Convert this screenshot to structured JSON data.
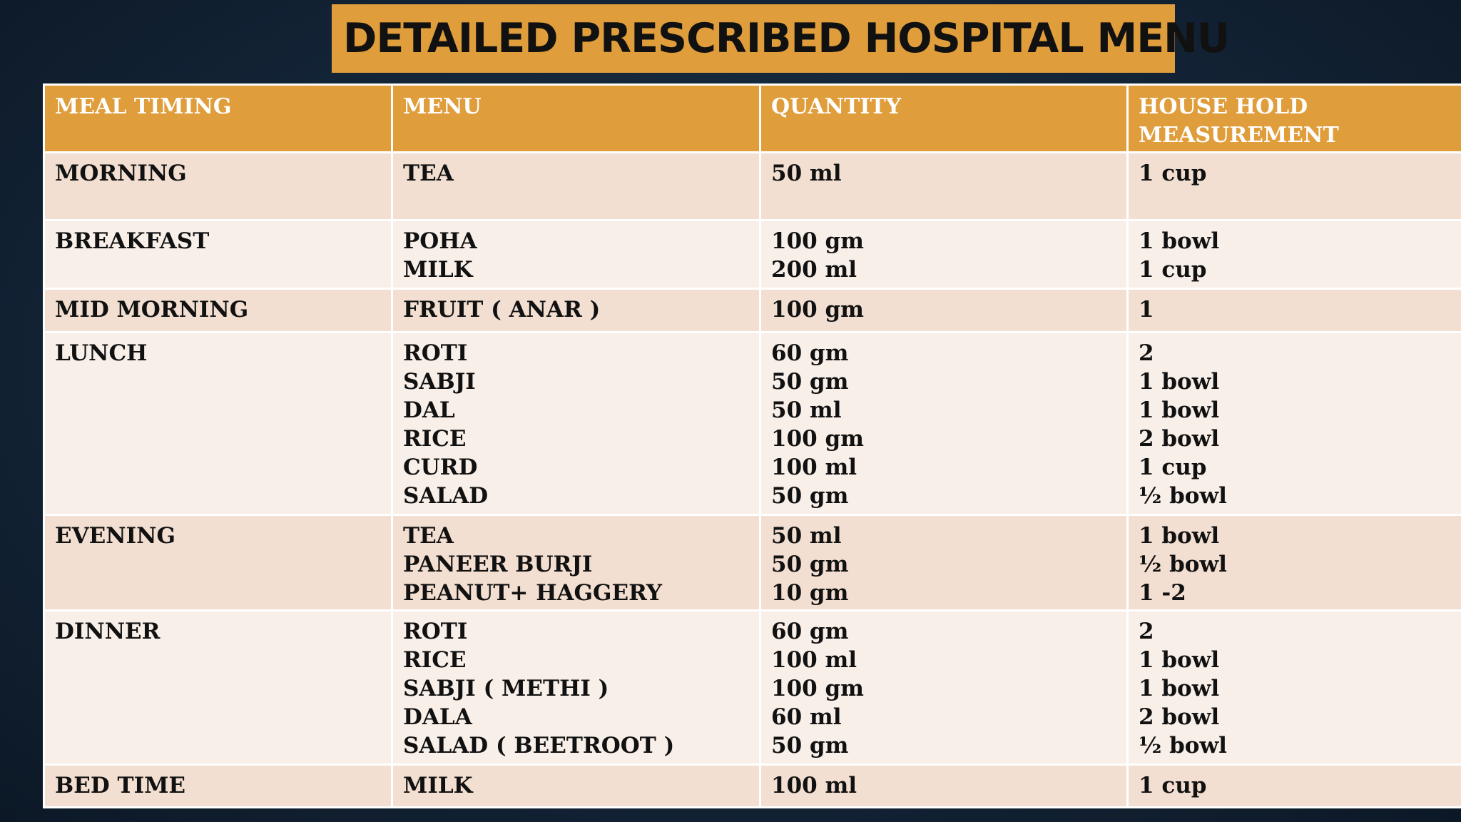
{
  "title": "DETAILED PRESCRIBED HOSPITAL MENU",
  "table": {
    "headers": [
      "MEAL TIMING",
      "MENU",
      "QUANTITY",
      "HOUSE HOLD MEASUREMENT"
    ],
    "rows": [
      {
        "meal": "MORNING",
        "menu": [
          "TEA"
        ],
        "quantity": [
          "50 ml"
        ],
        "measure": [
          "1 cup"
        ]
      },
      {
        "meal": "BREAKFAST",
        "menu": [
          "POHA",
          "MILK"
        ],
        "quantity": [
          "100 gm",
          "200 ml"
        ],
        "measure": [
          "1 bowl",
          "1 cup"
        ]
      },
      {
        "meal": "MID MORNING",
        "menu": [
          "FRUIT ( ANAR )"
        ],
        "quantity": [
          "100 gm"
        ],
        "measure": [
          "1"
        ]
      },
      {
        "meal": "LUNCH",
        "menu": [
          "ROTI",
          "SABJI",
          "DAL",
          "RICE",
          "CURD",
          "SALAD"
        ],
        "quantity": [
          "60 gm",
          "50 gm",
          "50 ml",
          "100 gm",
          "100 ml",
          "50 gm"
        ],
        "measure": [
          "2",
          "1 bowl",
          "1 bowl",
          "2 bowl",
          "1 cup",
          "½ bowl"
        ]
      },
      {
        "meal": "EVENING",
        "menu": [
          "TEA",
          "PANEER BURJI",
          "PEANUT+ HAGGERY"
        ],
        "quantity": [
          "50 ml",
          "50 gm",
          "10 gm"
        ],
        "measure": [
          "1 bowl",
          "½ bowl",
          "1 -2"
        ]
      },
      {
        "meal": "DINNER",
        "menu": [
          "ROTI",
          "RICE",
          "SABJI ( METHI )",
          "DALA",
          "SALAD ( BEETROOT )"
        ],
        "quantity": [
          "60 gm",
          "100 ml",
          "100 gm",
          "60 ml",
          "50 gm"
        ],
        "measure": [
          "2",
          "1 bowl",
          "1 bowl",
          "2 bowl",
          "½  bowl"
        ]
      },
      {
        "meal": "BED TIME",
        "menu": [
          "MILK"
        ],
        "quantity": [
          "100 ml"
        ],
        "measure": [
          "1 cup"
        ]
      }
    ]
  },
  "colors": {
    "accent": "#e09d3b",
    "row_dark": "#f2dfd1",
    "row_light": "#f8efe9",
    "background": "#142538"
  }
}
